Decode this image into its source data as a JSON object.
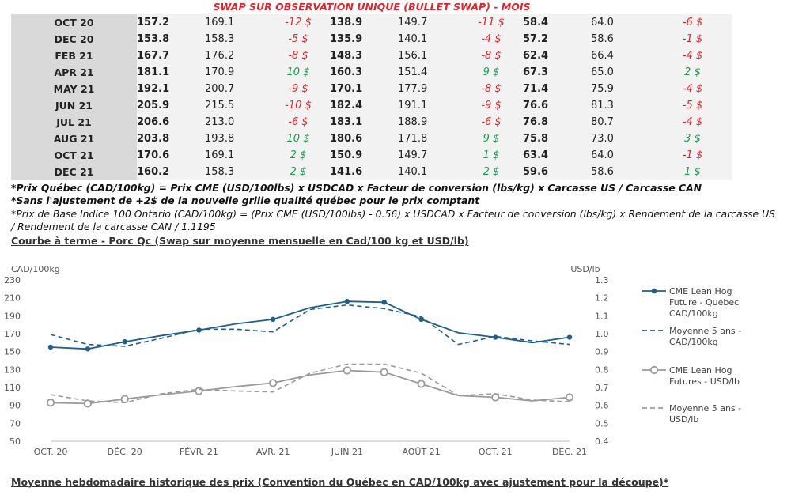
{
  "banner": "SWAP SUR OBSERVATION UNIQUE (BULLET SWAP) - MOIS",
  "rows": [
    {
      "month": "OCT 20",
      "a1": "157.2",
      "a2": "169.1",
      "d1": "-12 $",
      "b1": "138.9",
      "b2": "149.7",
      "d2": "-11 $",
      "c1": "58.4",
      "c2": "64.0",
      "d3": "-6 $"
    },
    {
      "month": "DEC 20",
      "a1": "153.8",
      "a2": "158.3",
      "d1": "-5 $",
      "b1": "135.9",
      "b2": "140.1",
      "d2": "-4 $",
      "c1": "57.2",
      "c2": "58.6",
      "d3": "-1 $"
    },
    {
      "month": "FEB 21",
      "a1": "167.7",
      "a2": "176.2",
      "d1": "-8 $",
      "b1": "148.3",
      "b2": "156.1",
      "d2": "-8 $",
      "c1": "62.4",
      "c2": "66.4",
      "d3": "-4 $"
    },
    {
      "month": "APR 21",
      "a1": "181.1",
      "a2": "170.9",
      "d1": "10 $",
      "b1": "160.3",
      "b2": "151.4",
      "d2": "9 $",
      "c1": "67.3",
      "c2": "65.0",
      "d3": "2 $"
    },
    {
      "month": "MAY 21",
      "a1": "192.1",
      "a2": "200.7",
      "d1": "-9 $",
      "b1": "170.1",
      "b2": "177.9",
      "d2": "-8 $",
      "c1": "71.4",
      "c2": "75.9",
      "d3": "-4 $"
    },
    {
      "month": "JUN 21",
      "a1": "205.9",
      "a2": "215.5",
      "d1": "-10 $",
      "b1": "182.4",
      "b2": "191.1",
      "d2": "-9 $",
      "c1": "76.6",
      "c2": "81.3",
      "d3": "-5 $"
    },
    {
      "month": "JUL 21",
      "a1": "206.6",
      "a2": "213.0",
      "d1": "-6 $",
      "b1": "183.1",
      "b2": "188.9",
      "d2": "-6 $",
      "c1": "76.8",
      "c2": "80.7",
      "d3": "-4 $"
    },
    {
      "month": "AUG 21",
      "a1": "203.8",
      "a2": "193.8",
      "d1": "10 $",
      "b1": "180.6",
      "b2": "171.8",
      "d2": "9 $",
      "c1": "75.8",
      "c2": "73.0",
      "d3": "3 $"
    },
    {
      "month": "OCT 21",
      "a1": "170.6",
      "a2": "169.1",
      "d1": "2 $",
      "b1": "150.9",
      "b2": "149.7",
      "d2": "1 $",
      "c1": "63.4",
      "c2": "64.0",
      "d3": "-1 $"
    },
    {
      "month": "DEC 21",
      "a1": "160.2",
      "a2": "158.3",
      "d1": "2 $",
      "b1": "141.6",
      "b2": "140.1",
      "d2": "2 $",
      "c1": "59.6",
      "c2": "58.6",
      "d3": "1 $"
    }
  ],
  "notes": {
    "n1": "*Prix Québec (CAD/100kg) = Prix CME (USD/100lbs) x USDCAD x Facteur de conversion (lbs/kg) x Carcasse US / Carcasse CAN",
    "n2": "*Sans l'ajustement de +2$ de la nouvelle grille qualité québec pour le prix comptant",
    "n3": "*Prix de Base Indice 100 Ontario (CAD/100kg) = (Prix CME (USD/100lbs) - 0.56) x USDCAD x Facteur de conversion (lbs/kg) x Rendement de la carcasse US",
    "n4": "/ Rendement de la carcasse CAN / 1.1195"
  },
  "heading1": "Courbe à terme - Porc Qc (Swap sur moyenne mensuelle en Cad/100 kg et USD/lb)",
  "heading2": "Moyenne hebdomadaire historique des prix (Convention du Québec en CAD/100kg avec ajustement pour la découpe)*",
  "colors": {
    "blue": "#1f5f8b",
    "gray": "#9a9a9a",
    "red": "#e0242a",
    "green": "#16a34a"
  },
  "chart_data": {
    "type": "line",
    "ylabel_left": "CAD/100kg",
    "ylabel_right": "USD/lb",
    "ylim_left": [
      50,
      230
    ],
    "yticks_left": [
      50,
      70,
      90,
      110,
      130,
      150,
      170,
      190,
      210,
      230
    ],
    "ylim_right": [
      0.4,
      1.3
    ],
    "yticks_right": [
      "0.4",
      "0.5",
      "0.6",
      "0.7",
      "0.8",
      "0.9",
      "1.0",
      "1.1",
      "1.2",
      "1.3"
    ],
    "x": [
      0,
      1,
      2,
      3,
      4,
      5,
      6,
      7,
      8,
      9,
      10,
      11,
      12,
      13,
      14
    ],
    "xticks": [
      {
        "x": 0,
        "label": "OCT. 20"
      },
      {
        "x": 2,
        "label": "DÉC. 20"
      },
      {
        "x": 4,
        "label": "FÉVR. 21"
      },
      {
        "x": 6,
        "label": "AVR. 21"
      },
      {
        "x": 8,
        "label": "JUIN 21"
      },
      {
        "x": 10,
        "label": "AOÛT 21"
      },
      {
        "x": 12,
        "label": "OCT. 21"
      },
      {
        "x": 14,
        "label": "DÉC. 21"
      }
    ],
    "series": [
      {
        "name": "CME Lean Hog Future - Quebec CAD/100kg",
        "legend_lines": [
          "CME Lean Hog",
          "Future - Quebec",
          "CAD/100kg"
        ],
        "axis": "left",
        "style": "solid-marker",
        "color": "#1f5f8b",
        "x": [
          0,
          1,
          2,
          3,
          4,
          5,
          6,
          7,
          8,
          9,
          10,
          11,
          12,
          13,
          14
        ],
        "values": [
          155,
          153,
          161,
          168,
          174,
          181,
          186,
          199,
          206,
          205,
          186,
          171,
          166,
          160,
          166
        ]
      },
      {
        "name": "Moyenne 5 ans - CAD/100kg",
        "legend_lines": [
          "Moyenne 5 ans -",
          "CAD/100kg"
        ],
        "axis": "left",
        "style": "dashed",
        "color": "#1f5f8b",
        "x": [
          0,
          1,
          2,
          3,
          4,
          5,
          6,
          7,
          8,
          9,
          10,
          11,
          12,
          13,
          14
        ],
        "values": [
          169,
          158,
          156,
          165,
          175,
          175,
          172,
          197,
          202,
          198,
          189,
          158,
          167,
          162,
          158
        ]
      },
      {
        "name": "CME Lean Hog Futures - USD/lb",
        "legend_lines": [
          "CME Lean Hog",
          "Futures - USD/lb"
        ],
        "axis": "right",
        "style": "hollow-marker",
        "color": "#9a9a9a",
        "x": [
          0,
          1,
          2,
          3,
          4,
          5,
          6,
          7,
          8,
          9,
          10,
          11,
          12,
          13,
          14
        ],
        "values": [
          0.615,
          0.61,
          0.635,
          0.66,
          0.68,
          0.705,
          0.725,
          0.77,
          0.795,
          0.785,
          0.72,
          0.655,
          0.645,
          0.625,
          0.645
        ]
      },
      {
        "name": "Moyenne 5 ans - USD/lb",
        "legend_lines": [
          "Moyenne 5 ans -",
          "USD/lb"
        ],
        "axis": "right",
        "style": "dashed",
        "color": "#9a9a9a",
        "x": [
          0,
          1,
          2,
          3,
          4,
          5,
          6,
          7,
          8,
          9,
          10,
          11,
          12,
          13,
          14
        ],
        "values": [
          0.66,
          0.625,
          0.615,
          0.665,
          0.69,
          0.68,
          0.675,
          0.78,
          0.83,
          0.83,
          0.78,
          0.655,
          0.665,
          0.63,
          0.62
        ]
      }
    ],
    "grid": false,
    "legend": "right"
  }
}
